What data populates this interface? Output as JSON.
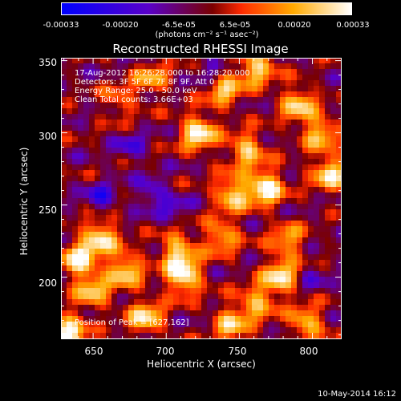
{
  "colorbar": {
    "ticks": [
      "-0.00033",
      "-0.00020",
      "-6.5e-05",
      "6.5e-05",
      "0.00020",
      "0.00033"
    ],
    "unit": "(photons cm⁻² s⁻¹ asec⁻²)",
    "range": [
      -0.00033,
      0.00033
    ],
    "colors": [
      "#0000ff",
      "#5a00c8",
      "#7a0000",
      "#ff2a00",
      "#ffaa00",
      "#ffffff"
    ]
  },
  "chart_data": {
    "type": "heatmap",
    "title": "Reconstructed RHESSI Image",
    "xlabel": "Heliocentric X (arcsec)",
    "ylabel": "Heliocentric Y (arcsec)",
    "xlim": [
      628,
      820
    ],
    "ylim": [
      157,
      352
    ],
    "xticks": [
      "650",
      "700",
      "750",
      "800"
    ],
    "yticks": [
      "200",
      "250",
      "300",
      "350"
    ],
    "peak": [
      627,
      162
    ],
    "sources": [
      {
        "x": 768,
        "y": 262,
        "v": 1.0
      },
      {
        "x": 745,
        "y": 258,
        "v": 0.8
      },
      {
        "x": 722,
        "y": 300,
        "v": 0.95
      },
      {
        "x": 755,
        "y": 288,
        "v": 0.75
      },
      {
        "x": 740,
        "y": 330,
        "v": 0.7
      },
      {
        "x": 762,
        "y": 345,
        "v": 0.8
      },
      {
        "x": 790,
        "y": 320,
        "v": 0.75
      },
      {
        "x": 812,
        "y": 272,
        "v": 0.85
      },
      {
        "x": 805,
        "y": 300,
        "v": 0.7
      },
      {
        "x": 632,
        "y": 162,
        "v": 1.0
      },
      {
        "x": 640,
        "y": 212,
        "v": 0.9
      },
      {
        "x": 655,
        "y": 228,
        "v": 0.85
      },
      {
        "x": 672,
        "y": 205,
        "v": 0.8
      },
      {
        "x": 650,
        "y": 190,
        "v": 0.7
      },
      {
        "x": 686,
        "y": 172,
        "v": 0.8
      },
      {
        "x": 712,
        "y": 200,
        "v": 0.95
      },
      {
        "x": 708,
        "y": 218,
        "v": 0.75
      },
      {
        "x": 738,
        "y": 228,
        "v": 0.65
      },
      {
        "x": 744,
        "y": 168,
        "v": 0.7
      },
      {
        "x": 762,
        "y": 182,
        "v": 0.65
      },
      {
        "x": 778,
        "y": 200,
        "v": 0.85
      },
      {
        "x": 783,
        "y": 225,
        "v": 0.6
      },
      {
        "x": 796,
        "y": 168,
        "v": 0.7
      },
      {
        "x": 690,
        "y": 338,
        "v": 0.55
      },
      {
        "x": 668,
        "y": 322,
        "v": 0.4
      }
    ],
    "negatives": [
      {
        "x": 655,
        "y": 255,
        "v": 0.8
      },
      {
        "x": 690,
        "y": 258,
        "v": 0.7
      },
      {
        "x": 676,
        "y": 290,
        "v": 0.6
      },
      {
        "x": 705,
        "y": 248,
        "v": 0.5
      },
      {
        "x": 730,
        "y": 345,
        "v": 0.5
      },
      {
        "x": 800,
        "y": 200,
        "v": 0.4
      }
    ]
  },
  "info": {
    "lines": [
      "17-Aug-2012 16:26:28.000 to 16:28:20.000",
      "Detectors: 3F 5F 6F 7F 8F 9F, Att 0",
      "Energy Range: 25.0 - 50.0 keV",
      "Clean     Total counts: 3.66E+03"
    ],
    "peak_line": "Position of Peak = [627,162]"
  },
  "timestamp": "10-May-2014 16:12"
}
